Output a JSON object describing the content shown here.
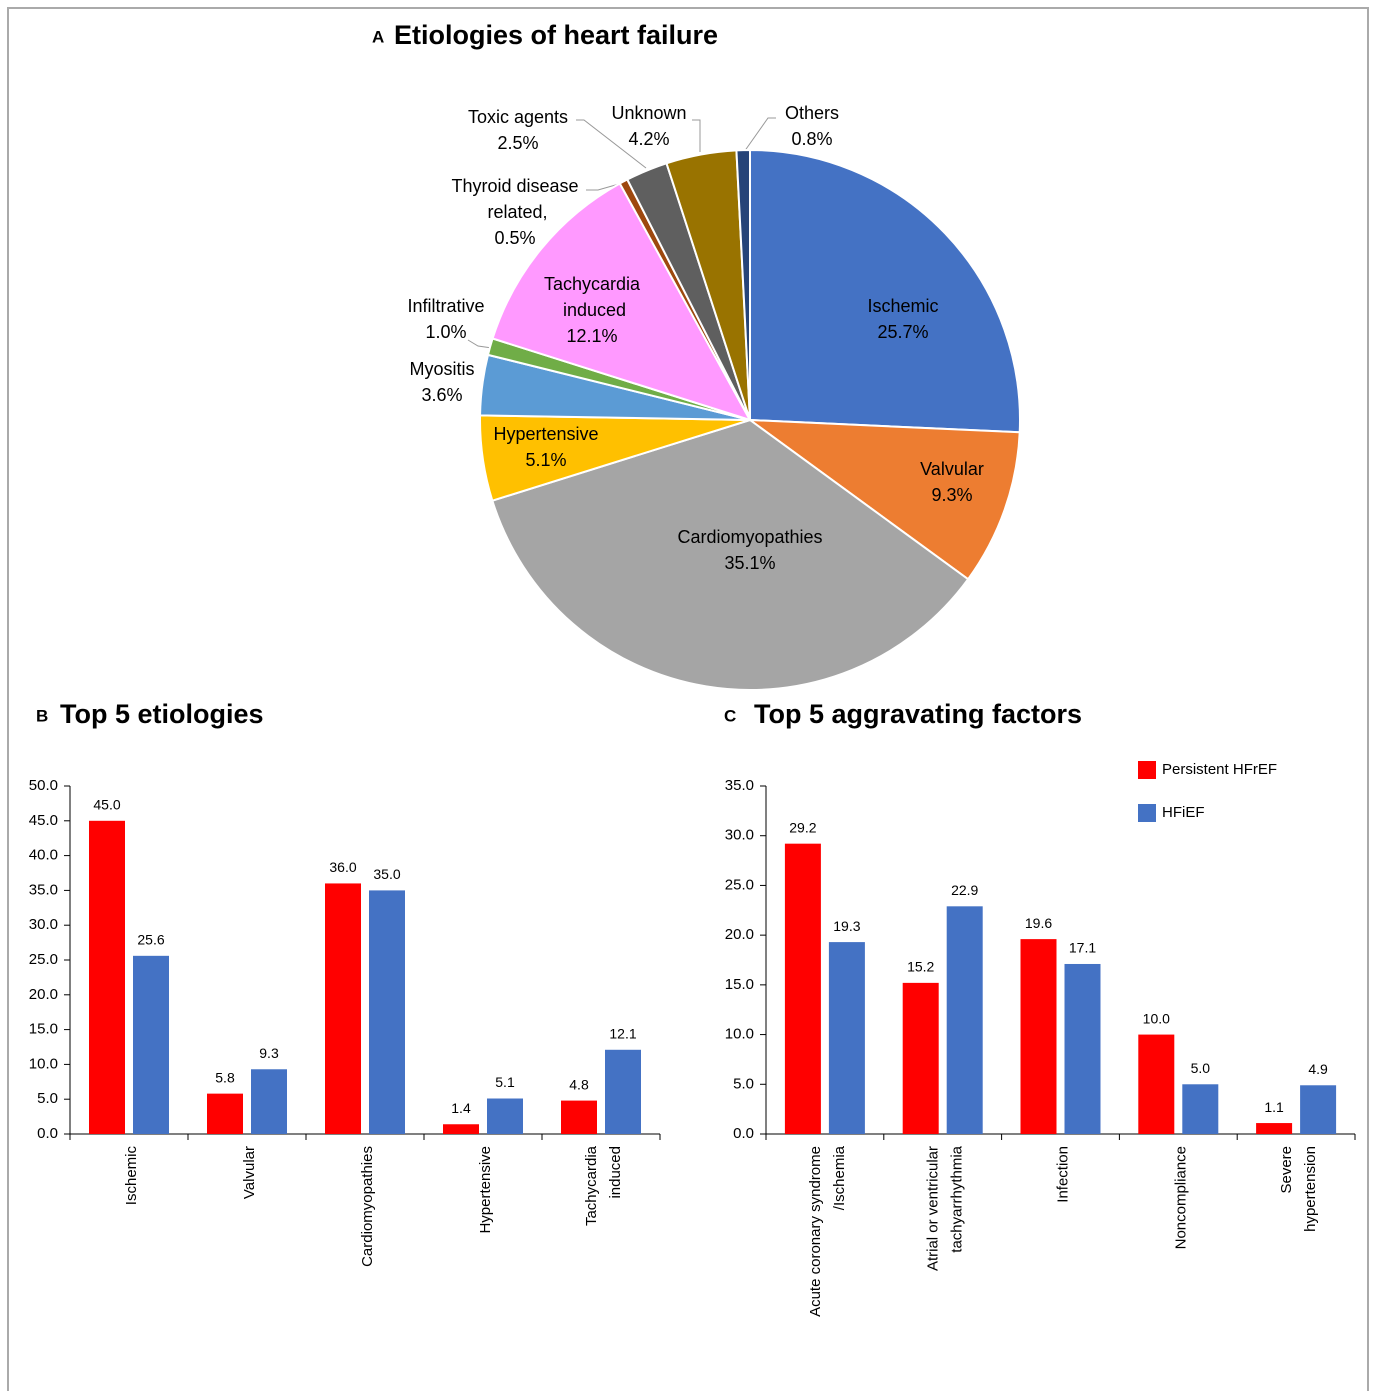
{
  "chart_data": [
    {
      "type": "pie",
      "panel": "A",
      "title": "Etiologies of heart failure",
      "categories": [
        "Ischemic",
        "Valvular",
        "Cardiomyopathies",
        "Hypertensive",
        "Myositis",
        "Infiltrative",
        "Tachycardia induced",
        "Thyroid disease related,",
        "Toxic agents",
        "Unknown",
        "Others"
      ],
      "values": [
        25.7,
        9.3,
        35.1,
        5.1,
        3.6,
        1.0,
        12.1,
        0.5,
        2.5,
        4.2,
        0.8
      ],
      "value_labels": [
        "25.7%",
        "9.3%",
        "35.1%",
        "5.1%",
        "3.6%",
        "1.0%",
        "12.1%",
        "0.5%",
        "2.5%",
        "4.2%",
        "0.8%"
      ],
      "colors": [
        "#4472c4",
        "#ed7d31",
        "#a5a5a5",
        "#ffc000",
        "#5b9bd5",
        "#70ad47",
        "#ff99ff",
        "#9e480e",
        "#5f5f5f",
        "#997300",
        "#264478"
      ]
    },
    {
      "type": "bar",
      "panel": "B",
      "title": "Top 5 etiologies",
      "categories": [
        "Ischemic",
        "Valvular",
        "Cardiomyopathies",
        "Hypertensive",
        "Tachycardia induced"
      ],
      "series": [
        {
          "color": "#ff0000",
          "values": [
            45.0,
            5.8,
            36.0,
            1.4,
            4.8
          ],
          "value_labels": [
            "45.0",
            "5.8",
            "36.0",
            "1.4",
            "4.8"
          ]
        },
        {
          "color": "#4472c4",
          "values": [
            25.6,
            9.3,
            35.0,
            5.1,
            12.1
          ],
          "value_labels": [
            "25.6",
            "9.3",
            "35.0",
            "5.1",
            "12.1"
          ]
        }
      ],
      "ylim": [
        0,
        50
      ],
      "yticks": [
        {
          "value": 0,
          "label": "0.0"
        },
        {
          "value": 5,
          "label": "5.0"
        },
        {
          "value": 10,
          "label": "10.0"
        },
        {
          "value": 15,
          "label": "15.0"
        },
        {
          "value": 20,
          "label": "20.0"
        },
        {
          "value": 25,
          "label": "25.0"
        },
        {
          "value": 30,
          "label": "30.0"
        },
        {
          "value": 35,
          "label": "35.0"
        },
        {
          "value": 40,
          "label": "40.0"
        },
        {
          "value": 45,
          "label": "45.0"
        },
        {
          "value": 50,
          "label": "50.0"
        }
      ]
    },
    {
      "type": "bar",
      "panel": "C",
      "title": "Top 5 aggravating factors",
      "categories": [
        "Acute coronary syndrome /Ischemia",
        "Atrial or ventricular tachyarrhythmia",
        "Infection",
        "Noncompliance",
        "Severe hypertension"
      ],
      "series": [
        {
          "name": "Persistent HFrEF",
          "color": "#ff0000",
          "values": [
            29.2,
            15.2,
            19.6,
            10.0,
            1.1
          ],
          "value_labels": [
            "29.2",
            "15.2",
            "19.6",
            "10.0",
            "1.1"
          ]
        },
        {
          "name": "HFiEF",
          "color": "#4472c4",
          "values": [
            19.3,
            22.9,
            17.1,
            5.0,
            4.9
          ],
          "value_labels": [
            "19.3",
            "22.9",
            "17.1",
            "5.0",
            "4.9"
          ]
        }
      ],
      "ylim": [
        0,
        35
      ],
      "yticks": [
        {
          "value": 0,
          "label": "0.0"
        },
        {
          "value": 5,
          "label": "5.0"
        },
        {
          "value": 10,
          "label": "10.0"
        },
        {
          "value": 15,
          "label": "15.0"
        },
        {
          "value": 20,
          "label": "20.0"
        },
        {
          "value": 25,
          "label": "25.0"
        },
        {
          "value": 30,
          "label": "30.0"
        },
        {
          "value": 35,
          "label": "35.0"
        }
      ],
      "legend": "top-right"
    }
  ]
}
